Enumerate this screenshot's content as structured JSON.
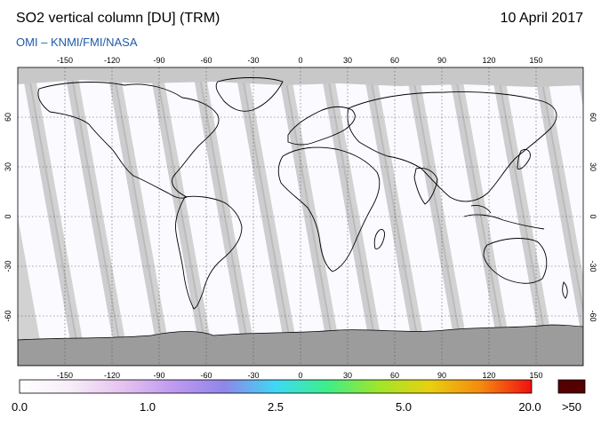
{
  "header": {
    "title": "SO2 vertical column [DU] (TRM)",
    "date": "10 April 2017",
    "credit": "OMI  –  KNMI/FMI/NASA"
  },
  "map": {
    "projection": "equirectangular",
    "lon_ticks": [
      -150,
      -120,
      -90,
      -60,
      -30,
      0,
      30,
      60,
      90,
      120,
      150
    ],
    "lat_ticks": [
      60,
      30,
      0,
      -30,
      -60
    ],
    "lon_range": [
      -180,
      180
    ],
    "lat_range": [
      -90,
      90
    ],
    "colors": {
      "data": "#fbfaff",
      "gap": "#d2d2d2",
      "overlap": "#a8a8a8",
      "polar": "#9c9c9c",
      "coast": "#000000"
    }
  },
  "colorbar": {
    "labels": [
      "0.0",
      "1.0",
      "2.5",
      "5.0",
      "20.0"
    ],
    "overflow_label": ">50",
    "overflow_color": "#550000",
    "colors": [
      "#ffffff",
      "#f7ecf8",
      "#e6c3f0",
      "#bf9af0",
      "#8f86ea",
      "#3fd8f5",
      "#3dee8a",
      "#9fe62a",
      "#e8d010",
      "#f58a10",
      "#f01010"
    ]
  }
}
